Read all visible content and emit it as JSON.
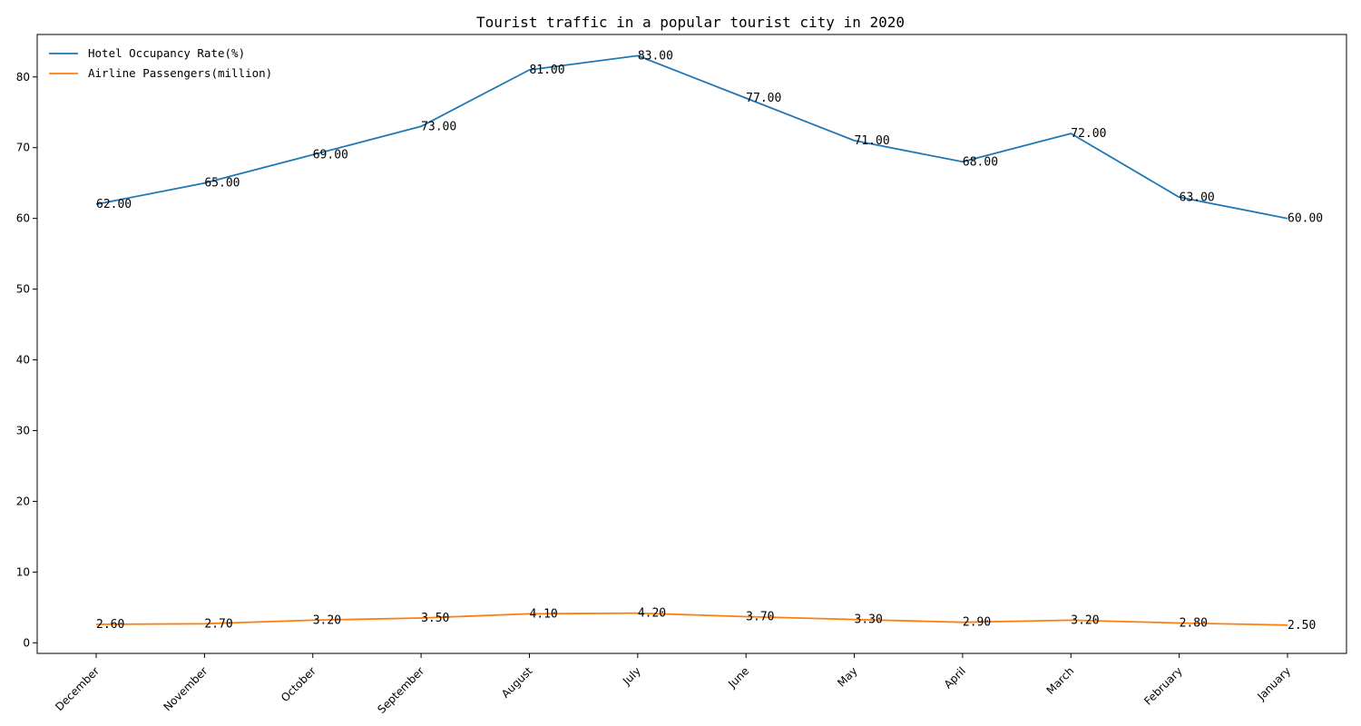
{
  "chart_data": {
    "type": "line",
    "title": "Tourist traffic in a popular tourist city in 2020",
    "xlabel": "",
    "ylabel": "",
    "categories": [
      "December",
      "November",
      "October",
      "September",
      "August",
      "July",
      "June",
      "May",
      "April",
      "March",
      "February",
      "January"
    ],
    "series": [
      {
        "name": "Hotel Occupancy Rate(%)",
        "color": "#1f77b4",
        "values": [
          62,
          65,
          69,
          73,
          81,
          83,
          77,
          71,
          68,
          72,
          63,
          60
        ],
        "labels": [
          "62.00",
          "65.00",
          "69.00",
          "73.00",
          "81.00",
          "83.00",
          "77.00",
          "71.00",
          "68.00",
          "72.00",
          "63.00",
          "60.00"
        ]
      },
      {
        "name": "Airline Passengers(million)",
        "color": "#ff7f0e",
        "values": [
          2.6,
          2.7,
          3.2,
          3.5,
          4.1,
          4.2,
          3.7,
          3.3,
          2.9,
          3.2,
          2.8,
          2.5
        ],
        "labels": [
          "2.60",
          "2.70",
          "3.20",
          "3.50",
          "4.10",
          "4.20",
          "3.70",
          "3.30",
          "2.90",
          "3.20",
          "2.80",
          "2.50"
        ]
      }
    ],
    "ylim": [
      -1.5,
      86
    ],
    "yticks": [
      0,
      10,
      20,
      30,
      40,
      50,
      60,
      70,
      80
    ],
    "grid": false,
    "legend_position": "top-left"
  }
}
